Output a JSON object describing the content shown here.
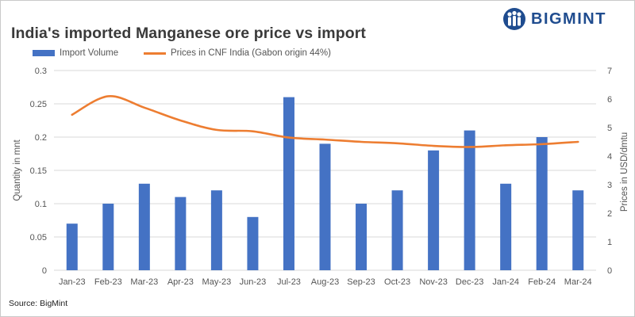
{
  "title": "India's imported Manganese ore price vs import",
  "logo": {
    "text": "BIGMINT",
    "icon": "bigmint-people-logo-icon",
    "color": "#1f4c8f"
  },
  "source": "Source: BigMint",
  "chart_data": {
    "type": "bar",
    "categories": [
      "Jan-23",
      "Feb-23",
      "Mar-23",
      "Apr-23",
      "May-23",
      "Jun-23",
      "Jul-23",
      "Aug-23",
      "Sep-23",
      "Oct-23",
      "Nov-23",
      "Dec-23",
      "Jan-24",
      "Feb-24",
      "Mar-24"
    ],
    "series": [
      {
        "name": "Import Volume",
        "type": "bar",
        "axis": "left",
        "color": "#4472c4",
        "values": [
          0.07,
          0.1,
          0.13,
          0.11,
          0.12,
          0.08,
          0.26,
          0.19,
          0.1,
          0.12,
          0.18,
          0.21,
          0.13,
          0.2,
          0.12
        ]
      },
      {
        "name": "Prices in CNF India (Gabon origin 44%)",
        "type": "line",
        "axis": "right",
        "color": "#ed7d31",
        "values": [
          5.45,
          6.1,
          5.7,
          5.25,
          4.92,
          4.87,
          4.65,
          4.58,
          4.5,
          4.45,
          4.36,
          4.32,
          4.38,
          4.42,
          4.5
        ]
      }
    ],
    "ylabel": "Quantity in mnt",
    "y2label": "Prices in USD/dmtu",
    "ylim": [
      0,
      0.3
    ],
    "y2lim": [
      0,
      7
    ],
    "yticks": [
      "0",
      "0.05",
      "0.1",
      "0.15",
      "0.2",
      "0.25",
      "0.3"
    ],
    "y2ticks": [
      "0",
      "1",
      "2",
      "3",
      "4",
      "5",
      "6",
      "7"
    ],
    "grid": true,
    "legend": "top-left"
  }
}
